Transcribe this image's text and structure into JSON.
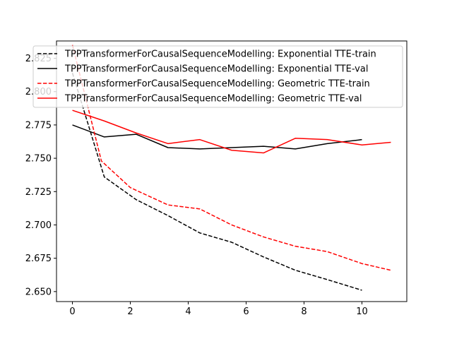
{
  "chart_data": {
    "type": "line",
    "title": "",
    "xlabel": "",
    "ylabel": "",
    "xlim": [
      -0.55,
      11.55
    ],
    "ylim": [
      2.6425,
      2.838
    ],
    "grid": false,
    "legend_position": "top-left",
    "x_ticks": [
      {
        "value": 0,
        "label": "0"
      },
      {
        "value": 2,
        "label": "2"
      },
      {
        "value": 4,
        "label": "4"
      },
      {
        "value": 6,
        "label": "6"
      },
      {
        "value": 8,
        "label": "8"
      },
      {
        "value": 10,
        "label": "10"
      }
    ],
    "y_ticks": [
      {
        "value": 2.65,
        "label": "2.650"
      },
      {
        "value": 2.675,
        "label": "2.675"
      },
      {
        "value": 2.7,
        "label": "2.700"
      },
      {
        "value": 2.725,
        "label": "2.725"
      },
      {
        "value": 2.75,
        "label": "2.750"
      },
      {
        "value": 2.775,
        "label": "2.775"
      },
      {
        "value": 2.8,
        "label": "2.800"
      },
      {
        "value": 2.825,
        "label": "2.825"
      }
    ],
    "series": [
      {
        "name": "TPPTransformerForCausalSequenceModelling: Exponential TTE-train",
        "color": "#000000",
        "dash": true,
        "x": [
          0,
          1.1,
          2.2,
          3.3,
          4.4,
          5.5,
          6.6,
          7.7,
          8.8,
          10
        ],
        "y": [
          2.814,
          2.736,
          2.719,
          2.707,
          2.694,
          2.687,
          2.676,
          2.666,
          2.659,
          2.651
        ]
      },
      {
        "name": "TPPTransformerForCausalSequenceModelling: Exponential TTE-val",
        "color": "#000000",
        "dash": false,
        "x": [
          0,
          1.1,
          2.2,
          3.3,
          4.4,
          5.5,
          6.6,
          7.7,
          8.8,
          10
        ],
        "y": [
          2.775,
          2.766,
          2.768,
          2.758,
          2.757,
          2.758,
          2.759,
          2.757,
          2.761,
          2.764
        ]
      },
      {
        "name": "TPPTransformerForCausalSequenceModelling: Geometric TTE-train",
        "color": "#ff0000",
        "dash": true,
        "x": [
          0,
          1,
          2,
          3.3,
          4.4,
          5.5,
          6.6,
          7.7,
          8.8,
          10,
          11
        ],
        "y": [
          2.835,
          2.748,
          2.728,
          2.715,
          2.712,
          2.7,
          2.691,
          2.684,
          2.68,
          2.671,
          2.666
        ]
      },
      {
        "name": "TPPTransformerForCausalSequenceModelling: Geometric TTE-val",
        "color": "#ff0000",
        "dash": false,
        "x": [
          0,
          1.1,
          2.2,
          3.3,
          4.4,
          5.5,
          6.6,
          7.7,
          8.8,
          10,
          11
        ],
        "y": [
          2.786,
          2.778,
          2.769,
          2.761,
          2.764,
          2.756,
          2.754,
          2.765,
          2.764,
          2.76,
          2.762
        ]
      }
    ]
  }
}
